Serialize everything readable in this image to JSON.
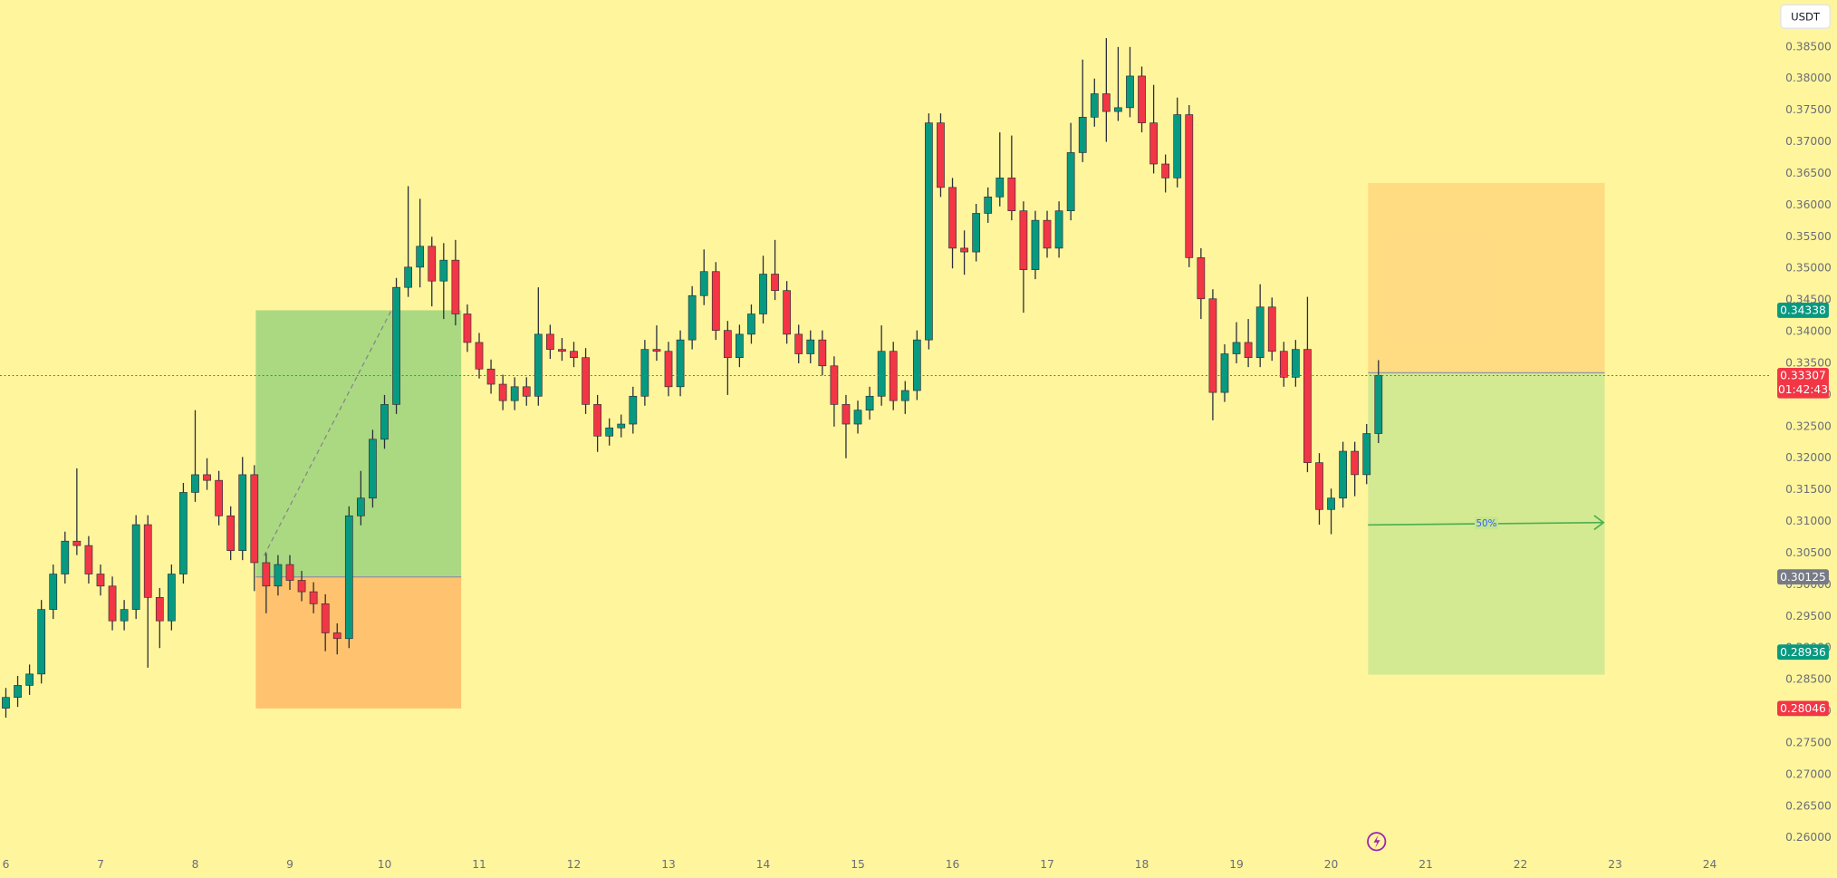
{
  "chart_data": {
    "type": "candlestick",
    "currency": "USDT",
    "background": "#fff59d",
    "up_color": "#089981",
    "down_color": "#f23645",
    "x": [
      6,
      6.125,
      6.25,
      6.375,
      6.5,
      6.625,
      6.75,
      6.875,
      7,
      7.125,
      7.25,
      7.375,
      7.5,
      7.625,
      7.75,
      7.875,
      8,
      8.125,
      8.25,
      8.375,
      8.5,
      8.625,
      8.75,
      8.875,
      9,
      9.125,
      9.25,
      9.375,
      9.5,
      9.625,
      9.75,
      9.875,
      10,
      10.125,
      10.25,
      10.375,
      10.5,
      10.625,
      10.75,
      10.875,
      11,
      11.125,
      11.25,
      11.375,
      11.5,
      11.625,
      11.75,
      11.875,
      12,
      12.125,
      12.25,
      12.375,
      12.5,
      12.625,
      12.75,
      12.875,
      13,
      13.125,
      13.25,
      13.375,
      13.5,
      13.625,
      13.75,
      13.875,
      14,
      14.125,
      14.25,
      14.375,
      14.5,
      14.625,
      14.75,
      14.875,
      15,
      15.125,
      15.25,
      15.375,
      15.5,
      15.625,
      15.75,
      15.875,
      16,
      16.125,
      16.25,
      16.375,
      16.5,
      16.625,
      16.75,
      16.875,
      17,
      17.125,
      17.25,
      17.375,
      17.5,
      17.625,
      17.75,
      17.875,
      18,
      18.125,
      18.25,
      18.375,
      18.5,
      18.625,
      18.75,
      18.875,
      19,
      19.125,
      19.25,
      19.375,
      19.5,
      19.625,
      19.75,
      19.875,
      20,
      20.125,
      20.25,
      20.375,
      20.5
    ],
    "open": [
      0.2805,
      0.2822,
      0.2841,
      0.2859,
      0.2961,
      0.3017,
      0.3069,
      0.3062,
      0.3017,
      0.2998,
      0.2943,
      0.2961,
      0.3095,
      0.298,
      0.2943,
      0.3017,
      0.3146,
      0.3174,
      0.3165,
      0.3109,
      0.3054,
      0.3174,
      0.3035,
      0.2998,
      0.3032,
      0.3007,
      0.2989,
      0.297,
      0.2924,
      0.2915,
      0.3109,
      0.3137,
      0.323,
      0.3285,
      0.347,
      0.3502,
      0.3535,
      0.348,
      0.3513,
      0.3428,
      0.3383,
      0.3341,
      0.3317,
      0.3291,
      0.3313,
      0.3298,
      0.3396,
      0.3372,
      0.3369,
      0.3359,
      0.3285,
      0.3235,
      0.3248,
      0.3254,
      0.3298,
      0.3372,
      0.3369,
      0.3313,
      0.3387,
      0.3457,
      0.3495,
      0.3402,
      0.3359,
      0.3396,
      0.3428,
      0.3491,
      0.3465,
      0.3396,
      0.3365,
      0.3387,
      0.3346,
      0.3285,
      0.3254,
      0.3276,
      0.3298,
      0.3369,
      0.3291,
      0.3307,
      0.3387,
      0.373,
      0.3628,
      0.3532,
      0.3526,
      0.3587,
      0.3613,
      0.3643,
      0.3591,
      0.3498,
      0.3576,
      0.3532,
      0.3591,
      0.3683,
      0.3739,
      0.3776,
      0.3748,
      0.3754,
      0.3804,
      0.373,
      0.3665,
      0.3643,
      0.3743,
      0.3517,
      0.3452,
      0.3304,
      0.3365,
      0.3383,
      0.3359,
      0.3439,
      0.3369,
      0.3328,
      0.3372,
      0.3193,
      0.3119,
      0.3137,
      0.3211,
      0.3174,
      0.3239
    ],
    "high": [
      0.2837,
      0.2856,
      0.2874,
      0.2976,
      0.3032,
      0.3084,
      0.3184,
      0.3077,
      0.3032,
      0.3013,
      0.2976,
      0.311,
      0.311,
      0.2995,
      0.3032,
      0.3161,
      0.3276,
      0.32,
      0.318,
      0.3124,
      0.3202,
      0.3189,
      0.305,
      0.3047,
      0.3047,
      0.3022,
      0.3004,
      0.2985,
      0.2939,
      0.3124,
      0.318,
      0.3245,
      0.33,
      0.3485,
      0.363,
      0.361,
      0.355,
      0.354,
      0.3545,
      0.3443,
      0.3398,
      0.3356,
      0.3332,
      0.3328,
      0.3328,
      0.347,
      0.3411,
      0.339,
      0.3384,
      0.3374,
      0.33,
      0.3263,
      0.3269,
      0.3313,
      0.3387,
      0.341,
      0.3384,
      0.3402,
      0.3472,
      0.353,
      0.351,
      0.3417,
      0.3411,
      0.3443,
      0.352,
      0.3545,
      0.348,
      0.3411,
      0.3402,
      0.3402,
      0.3361,
      0.33,
      0.3291,
      0.3313,
      0.341,
      0.3384,
      0.3322,
      0.3402,
      0.3745,
      0.3745,
      0.3643,
      0.356,
      0.3602,
      0.3628,
      0.3715,
      0.371,
      0.3606,
      0.3591,
      0.3591,
      0.3606,
      0.373,
      0.383,
      0.38,
      0.3864,
      0.385,
      0.385,
      0.3819,
      0.379,
      0.368,
      0.377,
      0.3758,
      0.3532,
      0.3467,
      0.338,
      0.3415,
      0.342,
      0.3475,
      0.3454,
      0.3384,
      0.3387,
      0.3455,
      0.3208,
      0.3152,
      0.3226,
      0.3226,
      0.3254,
      0.3355
    ],
    "low": [
      0.279,
      0.2807,
      0.2826,
      0.2844,
      0.2946,
      0.3002,
      0.3047,
      0.3002,
      0.2983,
      0.2928,
      0.2928,
      0.2946,
      0.2869,
      0.29,
      0.2928,
      0.3002,
      0.3131,
      0.315,
      0.3094,
      0.3039,
      0.3039,
      0.299,
      0.2955,
      0.2983,
      0.2992,
      0.2974,
      0.2955,
      0.2895,
      0.289,
      0.29,
      0.3094,
      0.3122,
      0.3215,
      0.327,
      0.3455,
      0.347,
      0.344,
      0.342,
      0.341,
      0.3368,
      0.3326,
      0.3302,
      0.3276,
      0.3276,
      0.3283,
      0.3283,
      0.3357,
      0.3354,
      0.3344,
      0.327,
      0.321,
      0.322,
      0.3233,
      0.3239,
      0.3283,
      0.3354,
      0.3298,
      0.3298,
      0.3372,
      0.3442,
      0.3387,
      0.33,
      0.3344,
      0.3381,
      0.3413,
      0.345,
      0.3381,
      0.335,
      0.335,
      0.3331,
      0.325,
      0.32,
      0.3239,
      0.3261,
      0.3283,
      0.3276,
      0.327,
      0.3292,
      0.3372,
      0.3613,
      0.35,
      0.349,
      0.3511,
      0.3572,
      0.3598,
      0.3576,
      0.343,
      0.3483,
      0.3517,
      0.3517,
      0.3576,
      0.3668,
      0.3724,
      0.37,
      0.3733,
      0.3739,
      0.3715,
      0.365,
      0.362,
      0.3628,
      0.3502,
      0.342,
      0.326,
      0.3289,
      0.335,
      0.3344,
      0.3344,
      0.3354,
      0.3313,
      0.3313,
      0.3178,
      0.3095,
      0.308,
      0.3122,
      0.314,
      0.3159,
      0.3224
    ],
    "close": [
      0.2822,
      0.2841,
      0.2859,
      0.2961,
      0.3017,
      0.3069,
      0.3062,
      0.3017,
      0.2998,
      0.2943,
      0.2961,
      0.3095,
      0.298,
      0.2943,
      0.3017,
      0.3146,
      0.3174,
      0.3165,
      0.3109,
      0.3054,
      0.3174,
      0.3035,
      0.2998,
      0.3032,
      0.3007,
      0.2989,
      0.297,
      0.2924,
      0.2915,
      0.3109,
      0.3137,
      0.323,
      0.3285,
      0.347,
      0.3502,
      0.3535,
      0.348,
      0.3513,
      0.3428,
      0.3383,
      0.3341,
      0.3317,
      0.3291,
      0.3313,
      0.3298,
      0.3396,
      0.3372,
      0.3369,
      0.3359,
      0.3285,
      0.3235,
      0.3248,
      0.3254,
      0.3298,
      0.3372,
      0.3369,
      0.3313,
      0.3387,
      0.3457,
      0.3495,
      0.3402,
      0.3359,
      0.3396,
      0.3428,
      0.3491,
      0.3465,
      0.3396,
      0.3365,
      0.3387,
      0.3346,
      0.3285,
      0.3254,
      0.3276,
      0.3298,
      0.3369,
      0.3291,
      0.3307,
      0.3387,
      0.373,
      0.3628,
      0.3532,
      0.3526,
      0.3587,
      0.3613,
      0.3643,
      0.3591,
      0.3498,
      0.3576,
      0.3532,
      0.3591,
      0.3683,
      0.3739,
      0.3776,
      0.3748,
      0.3754,
      0.3804,
      0.373,
      0.3665,
      0.3643,
      0.3743,
      0.3517,
      0.3452,
      0.3304,
      0.3365,
      0.3383,
      0.3359,
      0.3439,
      0.3369,
      0.3328,
      0.3372,
      0.3193,
      0.3119,
      0.3137,
      0.3211,
      0.3174,
      0.3239,
      0.3331
    ],
    "xlim": [
      5.938,
      24.626
    ],
    "xticks": [
      6,
      7,
      8,
      9,
      10,
      11,
      12,
      13,
      14,
      15,
      16,
      17,
      18,
      19,
      20,
      21,
      22,
      23,
      24
    ],
    "ylim": [
      0.2572,
      0.3924
    ],
    "yticks": [
      {
        "value": 0.26,
        "label": "0.26000"
      },
      {
        "value": 0.265,
        "label": "0.26500"
      },
      {
        "value": 0.27,
        "label": "0.27000"
      },
      {
        "value": 0.275,
        "label": "0.27500"
      },
      {
        "value": 0.28,
        "label": "0.28000"
      },
      {
        "value": 0.285,
        "label": "0.28500"
      },
      {
        "value": 0.29,
        "label": "0.29000"
      },
      {
        "value": 0.295,
        "label": "0.29500"
      },
      {
        "value": 0.3,
        "label": "0.30000"
      },
      {
        "value": 0.305,
        "label": "0.30500"
      },
      {
        "value": 0.31,
        "label": "0.31000"
      },
      {
        "value": 0.315,
        "label": "0.31500"
      },
      {
        "value": 0.32,
        "label": "0.32000"
      },
      {
        "value": 0.325,
        "label": "0.32500"
      },
      {
        "value": 0.33,
        "label": "0.33000"
      },
      {
        "value": 0.335,
        "label": "0.33500"
      },
      {
        "value": 0.34,
        "label": "0.34000"
      },
      {
        "value": 0.345,
        "label": "0.34500"
      },
      {
        "value": 0.35,
        "label": "0.35000"
      },
      {
        "value": 0.355,
        "label": "0.35500"
      },
      {
        "value": 0.36,
        "label": "0.36000"
      },
      {
        "value": 0.365,
        "label": "0.36500"
      },
      {
        "value": 0.37,
        "label": "0.37000"
      },
      {
        "value": 0.375,
        "label": "0.37500"
      },
      {
        "value": 0.38,
        "label": "0.38000"
      },
      {
        "value": 0.385,
        "label": "0.38500"
      }
    ],
    "grid": false,
    "current_price": {
      "value": 0.33307,
      "label": "0.33307",
      "countdown": "01:42:43",
      "color": "#f23645"
    },
    "price_labels": [
      {
        "value": 0.34338,
        "label": "0.34338",
        "color": "#089981"
      },
      {
        "value": 0.30125,
        "label": "0.30125",
        "color": "#787b86"
      },
      {
        "value": 0.28936,
        "label": "0.28936",
        "color": "#089981"
      },
      {
        "value": 0.28046,
        "label": "0.28046",
        "color": "#f23645"
      }
    ],
    "positions": [
      {
        "side": "long",
        "x": [
          8.64,
          10.81
        ],
        "entry": 0.30125,
        "target": 0.34338,
        "stop": 0.28046,
        "profit_color": "#8fcf7a",
        "loss_color": "#ffb060"
      },
      {
        "side": "short",
        "x": [
          20.39,
          22.89
        ],
        "entry": 0.3335,
        "target": 0.2858,
        "stop": 0.3635,
        "profit_color": "#c6e58f",
        "loss_color": "#ffd27a",
        "label": "50%"
      }
    ]
  }
}
